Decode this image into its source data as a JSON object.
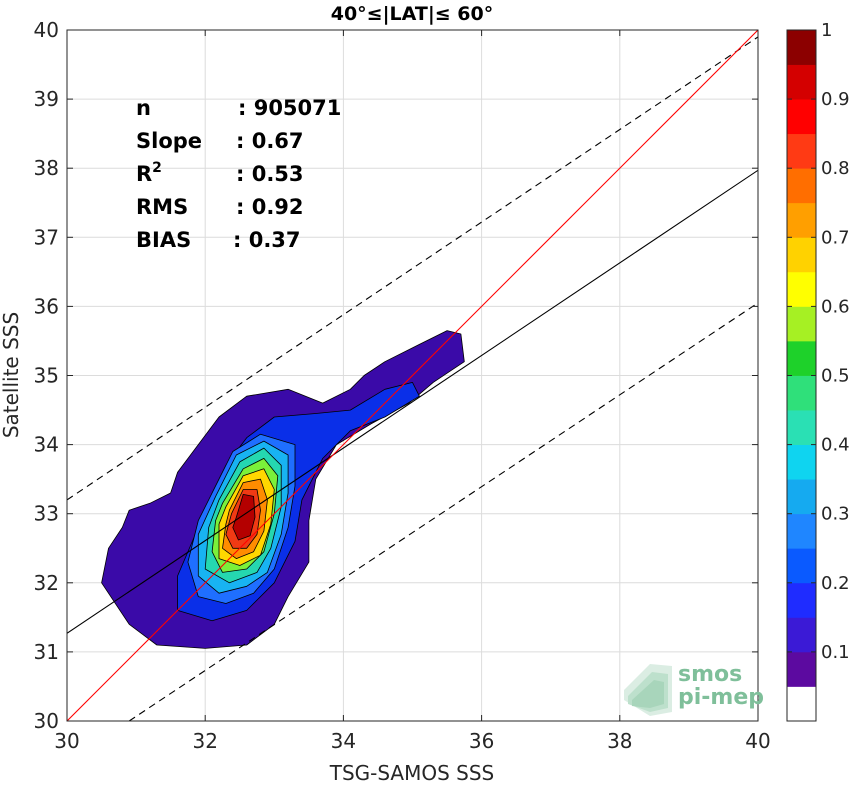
{
  "chart_data": {
    "type": "heatmap",
    "title": "40°≤|LAT|≤ 60°",
    "xlabel": "TSG-SAMOS SSS",
    "ylabel": "Satellite SSS",
    "xlim": [
      30,
      40
    ],
    "ylim": [
      30,
      40
    ],
    "x_ticks": [
      "30",
      "32",
      "34",
      "36",
      "38",
      "40"
    ],
    "y_ticks": [
      "30",
      "31",
      "32",
      "33",
      "34",
      "35",
      "36",
      "37",
      "38",
      "39",
      "40"
    ],
    "grid": true,
    "stats": [
      {
        "key": "n",
        "value": ": 905071"
      },
      {
        "key": "Slope",
        "value": ": 0.67"
      },
      {
        "key": "R",
        "sup": "2",
        "value": ": 0.53"
      },
      {
        "key": "RMS",
        "value": ": 0.92"
      },
      {
        "key": "BIAS",
        "value": ": 0.37"
      }
    ],
    "lines": {
      "one_to_one": {
        "x": [
          30,
          40
        ],
        "y": [
          30,
          40
        ],
        "color": "#ff0000"
      },
      "regression": {
        "x": [
          30,
          40
        ],
        "y": [
          31.27,
          37.97
        ],
        "color": "#000000"
      },
      "upper_dashed": {
        "x": [
          30,
          40
        ],
        "y": [
          33.2,
          39.9
        ],
        "color": "#000000"
      },
      "lower_dashed": {
        "x": [
          30.9,
          40
        ],
        "y": [
          30,
          36.05
        ],
        "color": "#000000"
      }
    },
    "density_contours": [
      {
        "level": 0.05,
        "color": "#3a0aa8",
        "polygon": [
          [
            30.9,
            33.05
          ],
          [
            31.2,
            33.15
          ],
          [
            31.5,
            33.3
          ],
          [
            31.6,
            33.6
          ],
          [
            31.9,
            34.0
          ],
          [
            32.2,
            34.4
          ],
          [
            32.6,
            34.7
          ],
          [
            33.2,
            34.8
          ],
          [
            33.7,
            34.6
          ],
          [
            34.1,
            34.8
          ],
          [
            34.3,
            35.0
          ],
          [
            34.6,
            35.2
          ],
          [
            35.1,
            35.45
          ],
          [
            35.5,
            35.65
          ],
          [
            35.7,
            35.6
          ],
          [
            35.75,
            35.2
          ],
          [
            35.3,
            34.9
          ],
          [
            34.95,
            34.6
          ],
          [
            34.4,
            34.3
          ],
          [
            33.9,
            34.0
          ],
          [
            33.6,
            33.5
          ],
          [
            33.5,
            32.9
          ],
          [
            33.5,
            32.3
          ],
          [
            33.2,
            31.8
          ],
          [
            33.0,
            31.4
          ],
          [
            32.6,
            31.1
          ],
          [
            32.0,
            31.05
          ],
          [
            31.3,
            31.1
          ],
          [
            30.9,
            31.4
          ],
          [
            30.5,
            32.0
          ],
          [
            30.6,
            32.5
          ],
          [
            30.8,
            32.8
          ]
        ]
      },
      {
        "level": 0.15,
        "color": "#0a2fe8",
        "polygon": [
          [
            32.3,
            33.7
          ],
          [
            32.6,
            34.1
          ],
          [
            33.0,
            34.4
          ],
          [
            33.6,
            34.45
          ],
          [
            34.1,
            34.5
          ],
          [
            34.6,
            34.8
          ],
          [
            35.0,
            34.9
          ],
          [
            35.1,
            34.7
          ],
          [
            34.6,
            34.4
          ],
          [
            34.1,
            34.2
          ],
          [
            33.7,
            33.8
          ],
          [
            33.4,
            33.2
          ],
          [
            33.3,
            32.6
          ],
          [
            33.0,
            32.0
          ],
          [
            32.6,
            31.6
          ],
          [
            32.1,
            31.45
          ],
          [
            31.6,
            31.6
          ],
          [
            31.6,
            32.1
          ],
          [
            31.9,
            32.8
          ],
          [
            32.1,
            33.3
          ]
        ]
      },
      {
        "level": 0.25,
        "color": "#1f6fff",
        "polygon": [
          [
            32.1,
            33.3
          ],
          [
            32.4,
            33.9
          ],
          [
            32.8,
            34.15
          ],
          [
            33.3,
            34.0
          ],
          [
            33.3,
            33.4
          ],
          [
            33.2,
            32.8
          ],
          [
            33.0,
            32.2
          ],
          [
            32.7,
            31.85
          ],
          [
            32.3,
            31.7
          ],
          [
            31.9,
            31.8
          ],
          [
            31.75,
            32.3
          ],
          [
            31.9,
            32.9
          ]
        ]
      },
      {
        "level": 0.35,
        "color": "#18b3f2",
        "polygon": [
          [
            32.15,
            33.25
          ],
          [
            32.45,
            33.85
          ],
          [
            32.85,
            34.05
          ],
          [
            33.2,
            33.85
          ],
          [
            33.2,
            33.3
          ],
          [
            33.1,
            32.7
          ],
          [
            32.9,
            32.15
          ],
          [
            32.6,
            31.95
          ],
          [
            32.2,
            31.85
          ],
          [
            31.9,
            32.1
          ],
          [
            31.9,
            32.7
          ]
        ]
      },
      {
        "level": 0.45,
        "color": "#25d7b0",
        "polygon": [
          [
            32.2,
            33.2
          ],
          [
            32.5,
            33.75
          ],
          [
            32.85,
            33.95
          ],
          [
            33.1,
            33.7
          ],
          [
            33.1,
            33.1
          ],
          [
            32.95,
            32.5
          ],
          [
            32.75,
            32.15
          ],
          [
            32.35,
            32.0
          ],
          [
            32.0,
            32.2
          ],
          [
            32.05,
            32.8
          ]
        ]
      },
      {
        "level": 0.55,
        "color": "#7bf03a",
        "polygon": [
          [
            32.25,
            33.15
          ],
          [
            32.55,
            33.65
          ],
          [
            32.85,
            33.8
          ],
          [
            33.05,
            33.55
          ],
          [
            33.0,
            33.0
          ],
          [
            32.85,
            32.45
          ],
          [
            32.6,
            32.2
          ],
          [
            32.25,
            32.15
          ],
          [
            32.1,
            32.45
          ],
          [
            32.15,
            32.9
          ]
        ]
      },
      {
        "level": 0.65,
        "color": "#ffd700",
        "polygon": [
          [
            32.3,
            33.1
          ],
          [
            32.55,
            33.55
          ],
          [
            32.85,
            33.65
          ],
          [
            33.0,
            33.35
          ],
          [
            32.95,
            32.85
          ],
          [
            32.8,
            32.4
          ],
          [
            32.5,
            32.25
          ],
          [
            32.2,
            32.35
          ],
          [
            32.2,
            32.85
          ]
        ]
      },
      {
        "level": 0.75,
        "color": "#ff8c00",
        "polygon": [
          [
            32.35,
            33.05
          ],
          [
            32.55,
            33.45
          ],
          [
            32.8,
            33.5
          ],
          [
            32.9,
            33.2
          ],
          [
            32.85,
            32.75
          ],
          [
            32.7,
            32.45
          ],
          [
            32.45,
            32.35
          ],
          [
            32.25,
            32.5
          ],
          [
            32.3,
            32.85
          ]
        ]
      },
      {
        "level": 0.85,
        "color": "#f03a14",
        "polygon": [
          [
            32.38,
            33.0
          ],
          [
            32.55,
            33.35
          ],
          [
            32.75,
            33.35
          ],
          [
            32.8,
            33.05
          ],
          [
            32.75,
            32.7
          ],
          [
            32.6,
            32.5
          ],
          [
            32.4,
            32.5
          ],
          [
            32.3,
            32.7
          ]
        ]
      },
      {
        "level": 0.95,
        "color": "#b40000",
        "polygon": [
          [
            32.45,
            32.95
          ],
          [
            32.55,
            33.28
          ],
          [
            32.7,
            33.25
          ],
          [
            32.72,
            32.95
          ],
          [
            32.65,
            32.68
          ],
          [
            32.48,
            32.62
          ],
          [
            32.4,
            32.8
          ]
        ]
      }
    ],
    "colorbar": {
      "ticks": [
        "0.1",
        "0.2",
        "0.3",
        "0.4",
        "0.5",
        "0.6",
        "0.7",
        "0.8",
        "0.9",
        "1"
      ],
      "colors": [
        "#ffffff",
        "#5c0aa0",
        "#3b1ad6",
        "#1f2cff",
        "#0a5aff",
        "#1f86ff",
        "#15aaf0",
        "#0fd4f0",
        "#2ae0b4",
        "#2fe07a",
        "#1ed12a",
        "#a6f023",
        "#ffff00",
        "#ffd200",
        "#ff9f00",
        "#ff6e00",
        "#ff3a14",
        "#ff0000",
        "#d40000",
        "#8c0000"
      ]
    }
  },
  "logo": {
    "line1": "smos",
    "line2": "pi-mep"
  }
}
